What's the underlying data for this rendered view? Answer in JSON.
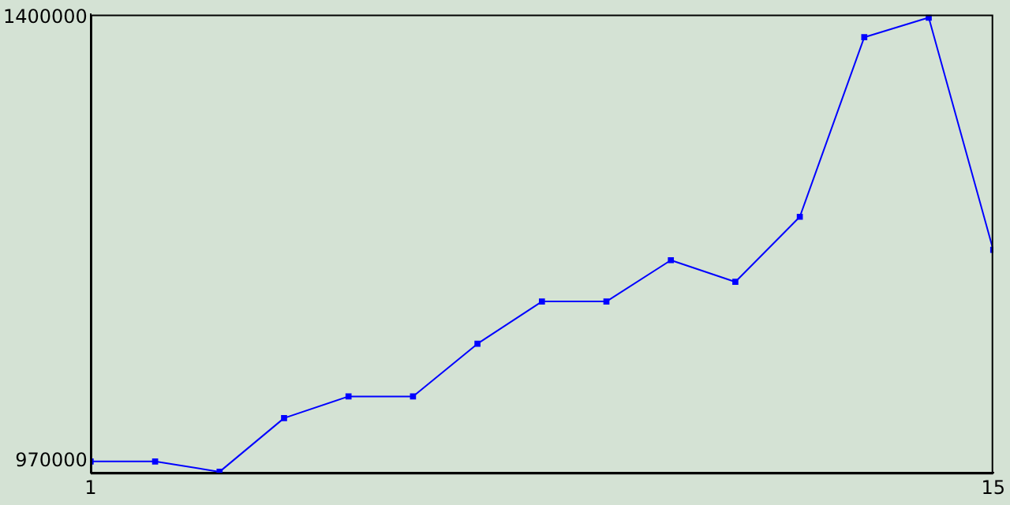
{
  "chart_data": {
    "type": "line",
    "x": [
      1,
      2,
      3,
      4,
      5,
      6,
      7,
      8,
      9,
      10,
      11,
      12,
      13,
      14,
      15
    ],
    "series": [
      {
        "color": "#0000ff",
        "values": [
          970000,
          970000,
          960000,
          1012000,
          1033000,
          1033000,
          1084000,
          1125000,
          1125000,
          1165000,
          1144000,
          1207000,
          1381000,
          1400000,
          1175000
        ]
      }
    ],
    "xlim": [
      1,
      15
    ],
    "xticks": [
      1,
      15
    ],
    "ylim": [
      959000,
      1403000
    ],
    "yticks": [
      970000,
      1400000
    ],
    "grid": false,
    "legend": false,
    "marker": "square",
    "line_style": "solid"
  }
}
